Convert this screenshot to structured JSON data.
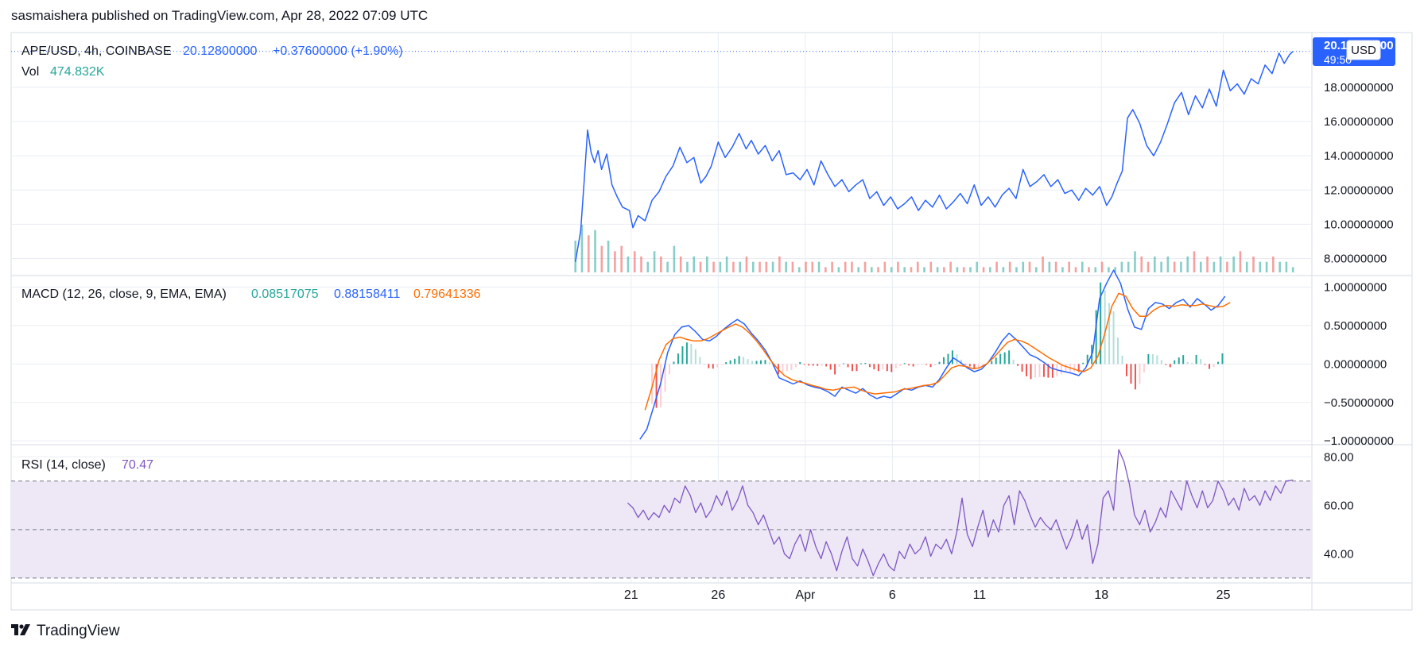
{
  "header": {
    "text": "sasmaishera published on TradingView.com, Apr 28, 2022 07:09 UTC"
  },
  "footer": {
    "logo_text": "TradingView",
    "logo_icon": "tradingview-logo-icon"
  },
  "colors": {
    "price": "#2962ff",
    "vol_up": "#26a69a",
    "vol_down": "#ef5350",
    "macd_line": "#2962ff",
    "signal_line": "#ff6d00",
    "rsi_line": "#7e57c2",
    "rsi_band": "#ede7f6",
    "grid": "#e9edf3",
    "axis_text": "#131722",
    "label_bg": "#2962ff"
  },
  "legend": {
    "symbol": "APE/USD, 4h, COINBASE",
    "price": "20.12800000",
    "change": "+0.37600000 (+1.90%)",
    "vol_label": "Vol",
    "vol_value": "474.832K",
    "macd_label": "MACD (12, 26, close, 9, EMA, EMA)",
    "macd_hist": "0.08517075",
    "macd_value": "0.88158411",
    "macd_signal": "0.79641336",
    "rsi_label": "RSI (14, close)",
    "rsi_value": "70.47"
  },
  "price_axis": {
    "currency_button": "USD",
    "last_price_label": "20.12800000",
    "countdown": "49:50"
  },
  "chart_data": [
    {
      "type": "line",
      "name": "price",
      "ylim": [
        7,
        21.2
      ],
      "yticks": [
        "8.00000000",
        "10.00000000",
        "12.00000000",
        "14.00000000",
        "16.00000000",
        "18.00000000"
      ],
      "ytick_values": [
        8,
        10,
        12,
        14,
        16,
        18
      ],
      "x_range": [
        0,
        42
      ],
      "x_ticks": [
        {
          "x": 2,
          "label": "21"
        },
        {
          "x": 7,
          "label": "26"
        },
        {
          "x": 12,
          "label": "Apr"
        },
        {
          "x": 17,
          "label": "6"
        },
        {
          "x": 22,
          "label": "11"
        },
        {
          "x": 29,
          "label": "18"
        },
        {
          "x": 36,
          "label": "25"
        }
      ],
      "x": [
        -1.2,
        -0.9,
        -0.7,
        -0.5,
        -0.3,
        -0.1,
        0.1,
        0.3,
        0.6,
        0.9,
        1.2,
        1.5,
        1.9,
        2.1,
        2.4,
        2.8,
        3.2,
        3.6,
        4.0,
        4.4,
        4.8,
        5.2,
        5.6,
        6.0,
        6.3,
        6.6,
        7.0,
        7.4,
        7.8,
        8.2,
        8.6,
        8.9,
        9.3,
        9.7,
        10.1,
        10.5,
        10.9,
        11.3,
        11.7,
        12.1,
        12.5,
        12.9,
        13.3,
        13.7,
        14.1,
        14.5,
        14.9,
        15.3,
        15.7,
        16.1,
        16.5,
        16.9,
        17.3,
        17.7,
        18.1,
        18.5,
        18.9,
        19.3,
        19.7,
        20.1,
        20.5,
        20.9,
        21.3,
        21.7,
        22.1,
        22.5,
        22.9,
        23.3,
        23.7,
        24.1,
        24.5,
        24.9,
        25.3,
        25.7,
        26.1,
        26.5,
        26.9,
        27.3,
        27.7,
        28.1,
        28.5,
        28.9,
        29.3,
        29.6,
        29.9,
        30.2,
        30.5,
        30.8,
        31.2,
        31.6,
        32.0,
        32.4,
        32.8,
        33.2,
        33.6,
        34.0,
        34.4,
        34.8,
        35.2,
        35.6,
        36.0,
        36.4,
        36.8,
        37.2,
        37.6,
        38.0,
        38.4,
        38.8,
        39.2,
        39.5,
        39.8,
        40.0
      ],
      "values": [
        7.8,
        9.6,
        12.5,
        15.5,
        14.2,
        13.6,
        14.3,
        13.2,
        14.1,
        12.3,
        11.6,
        11.0,
        10.8,
        9.8,
        10.5,
        10.2,
        11.4,
        11.9,
        12.8,
        13.4,
        14.5,
        13.6,
        13.9,
        12.4,
        12.8,
        13.4,
        14.8,
        13.9,
        14.5,
        15.3,
        14.4,
        14.9,
        14.1,
        14.6,
        13.7,
        14.3,
        12.9,
        13.0,
        12.6,
        13.2,
        12.3,
        13.7,
        12.9,
        12.2,
        12.6,
        11.9,
        12.3,
        12.6,
        11.5,
        11.9,
        11.1,
        11.6,
        10.9,
        11.2,
        11.6,
        10.8,
        11.4,
        11.0,
        11.7,
        10.9,
        11.3,
        11.8,
        11.2,
        12.3,
        11.1,
        11.6,
        11.0,
        11.7,
        12.1,
        11.5,
        13.2,
        12.2,
        12.5,
        12.9,
        12.2,
        12.6,
        11.8,
        12.0,
        11.4,
        12.1,
        11.7,
        12.2,
        11.1,
        11.6,
        12.4,
        13.1,
        16.2,
        16.7,
        15.9,
        14.6,
        14.0,
        14.8,
        15.9,
        17.1,
        17.7,
        16.4,
        17.5,
        16.8,
        17.9,
        16.9,
        19.0,
        17.8,
        18.2,
        17.6,
        18.5,
        18.2,
        19.3,
        18.8,
        20.0,
        19.4,
        19.9,
        20.1
      ]
    },
    {
      "type": "bar",
      "name": "Vol",
      "values": [
        6,
        9,
        7,
        8,
        5,
        6,
        4,
        5,
        3,
        4,
        3,
        2,
        4,
        3,
        2,
        5,
        3,
        2,
        3,
        2,
        3,
        2,
        2,
        3,
        2,
        2,
        3,
        2,
        2,
        2,
        2,
        3,
        2,
        2,
        1,
        2,
        2,
        2,
        1,
        2,
        1,
        2,
        2,
        1,
        2,
        1,
        1,
        2,
        1,
        2,
        1,
        1,
        2,
        1,
        2,
        1,
        1,
        2,
        1,
        1,
        1,
        2,
        1,
        1,
        2,
        1,
        2,
        1,
        2,
        2,
        1,
        3,
        2,
        2,
        1,
        2,
        1,
        2,
        1,
        1,
        2,
        1,
        1,
        2,
        2,
        4,
        3,
        2,
        3,
        2,
        3,
        2,
        2,
        3,
        4,
        2,
        3,
        2,
        3,
        2,
        3,
        4,
        2,
        3,
        2,
        2,
        3,
        2,
        2,
        1
      ],
      "up": [
        1,
        1,
        0,
        1,
        0,
        1,
        0,
        0,
        1,
        0,
        0,
        1,
        1,
        0,
        1,
        1,
        0,
        1,
        1,
        0,
        1,
        0,
        1,
        1,
        0,
        1,
        0,
        1,
        0,
        0,
        1,
        0,
        1,
        0,
        1,
        0,
        0,
        1,
        0,
        0,
        1,
        0,
        0,
        1,
        0,
        1,
        0,
        0,
        1,
        0,
        1,
        0,
        0,
        1,
        0,
        1,
        0,
        0,
        1,
        0,
        1,
        1,
        0,
        1,
        0,
        1,
        0,
        1,
        1,
        0,
        1,
        0,
        1,
        0,
        1,
        0,
        0,
        1,
        0,
        1,
        0,
        1,
        1,
        1,
        1,
        1,
        0,
        0,
        1,
        1,
        1,
        0,
        1,
        1,
        0,
        1,
        0,
        1,
        1,
        0,
        1,
        0,
        1,
        0,
        1,
        1,
        0,
        1,
        1,
        1
      ],
      "ylim": [
        0,
        15
      ]
    },
    {
      "type": "line",
      "name": "MACD",
      "ylim": [
        -1.05,
        1.15
      ],
      "yticks": [
        "1.00000000",
        "0.50000000",
        "0.00000000",
        "−0.50000000",
        "−1.00000000"
      ],
      "ytick_values": [
        1,
        0.5,
        0,
        -0.5,
        -1
      ],
      "x_range": [
        0,
        42
      ],
      "macd_x": [
        2.5,
        2.9,
        3.3,
        3.7,
        4.1,
        4.5,
        4.9,
        5.3,
        5.7,
        6.1,
        6.5,
        6.9,
        7.3,
        7.7,
        8.1,
        8.5,
        8.9,
        9.3,
        9.7,
        10.1,
        10.5,
        10.9,
        11.3,
        11.7,
        12.1,
        12.5,
        12.9,
        13.3,
        13.7,
        14.1,
        14.5,
        14.9,
        15.3,
        15.7,
        16.1,
        16.5,
        16.9,
        17.3,
        17.7,
        18.1,
        18.5,
        18.9,
        19.3,
        19.7,
        20.1,
        20.5,
        20.9,
        21.3,
        21.7,
        22.1,
        22.5,
        22.9,
        23.3,
        23.7,
        24.1,
        24.5,
        24.9,
        25.3,
        25.7,
        26.1,
        26.5,
        26.9,
        27.3,
        27.7,
        28.1,
        28.5,
        28.9,
        29.3,
        29.7,
        30.1,
        30.5,
        30.9,
        31.3,
        31.7,
        32.1,
        32.5,
        32.9,
        33.3,
        33.7,
        34.1,
        34.5,
        34.9,
        35.3,
        35.7,
        36.1,
        36.5,
        36.9,
        37.3,
        37.7,
        38.1,
        38.5,
        38.9,
        39.3,
        39.7,
        40.0
      ],
      "macd": [
        -0.98,
        -0.85,
        -0.55,
        -0.25,
        0.15,
        0.38,
        0.48,
        0.5,
        0.42,
        0.32,
        0.3,
        0.36,
        0.45,
        0.52,
        0.58,
        0.52,
        0.4,
        0.3,
        0.18,
        0.02,
        -0.18,
        -0.22,
        -0.26,
        -0.22,
        -0.27,
        -0.3,
        -0.32,
        -0.36,
        -0.42,
        -0.3,
        -0.34,
        -0.38,
        -0.32,
        -0.4,
        -0.45,
        -0.42,
        -0.44,
        -0.38,
        -0.32,
        -0.34,
        -0.3,
        -0.28,
        -0.3,
        -0.2,
        -0.05,
        0.08,
        0.02,
        -0.05,
        -0.1,
        -0.07,
        0.02,
        0.15,
        0.3,
        0.4,
        0.32,
        0.22,
        0.12,
        0.08,
        0.02,
        -0.05,
        -0.08,
        -0.1,
        -0.12,
        -0.15,
        -0.05,
        0.15,
        0.85,
        1.05,
        1.22,
        1.05,
        0.72,
        0.48,
        0.45,
        0.72,
        0.8,
        0.78,
        0.72,
        0.8,
        0.84,
        0.74,
        0.85,
        0.78,
        0.7,
        0.76,
        0.88
      ],
      "signal_x": [
        2.8,
        3.2,
        3.6,
        4.0,
        4.4,
        4.8,
        5.2,
        5.6,
        6.0,
        6.4,
        6.8,
        7.2,
        7.6,
        8.0,
        8.4,
        8.8,
        9.2,
        9.6,
        10.0,
        10.4,
        10.8,
        11.2,
        11.6,
        12.0,
        12.4,
        12.8,
        13.2,
        13.6,
        14.0,
        14.4,
        14.8,
        15.2,
        15.6,
        16.0,
        16.4,
        16.8,
        17.2,
        17.6,
        18.0,
        18.4,
        18.8,
        19.2,
        19.6,
        20.0,
        20.4,
        20.8,
        21.2,
        21.6,
        22.0,
        22.4,
        22.8,
        23.2,
        23.6,
        24.0,
        24.4,
        24.8,
        25.2,
        25.6,
        26.0,
        26.4,
        26.8,
        27.2,
        27.6,
        28.0,
        28.4,
        28.8,
        29.2,
        29.6,
        30.0,
        30.4,
        30.8,
        31.2,
        31.6,
        32.0,
        32.4,
        32.8,
        33.2,
        33.6,
        34.0,
        34.4,
        34.8,
        35.2,
        35.6,
        36.0,
        36.4,
        36.8,
        37.2,
        37.6,
        38.0,
        38.4,
        38.8,
        39.2,
        39.6,
        40.0
      ],
      "signal": [
        -0.6,
        -0.3,
        0.05,
        0.25,
        0.33,
        0.35,
        0.32,
        0.3,
        0.3,
        0.33,
        0.38,
        0.43,
        0.48,
        0.52,
        0.48,
        0.4,
        0.3,
        0.18,
        0.05,
        -0.06,
        -0.15,
        -0.2,
        -0.23,
        -0.25,
        -0.28,
        -0.3,
        -0.33,
        -0.34,
        -0.32,
        -0.31,
        -0.3,
        -0.34,
        -0.37,
        -0.39,
        -0.38,
        -0.37,
        -0.36,
        -0.33,
        -0.32,
        -0.3,
        -0.28,
        -0.27,
        -0.24,
        -0.15,
        -0.05,
        -0.02,
        -0.03,
        -0.06,
        -0.05,
        0.0,
        0.08,
        0.18,
        0.28,
        0.32,
        0.3,
        0.26,
        0.2,
        0.14,
        0.08,
        0.03,
        -0.02,
        -0.05,
        -0.08,
        -0.1,
        -0.05,
        0.1,
        0.4,
        0.75,
        0.92,
        0.88,
        0.72,
        0.62,
        0.62,
        0.7,
        0.75,
        0.76,
        0.75,
        0.77,
        0.76,
        0.76,
        0.78,
        0.76,
        0.74,
        0.75,
        0.8
      ]
    },
    {
      "type": "line",
      "name": "RSI",
      "ylim": [
        28,
        85
      ],
      "yticks": [
        "80.00",
        "60.00",
        "40.00"
      ],
      "ytick_values": [
        80,
        60,
        40
      ],
      "band": [
        30,
        70
      ],
      "midline": 50,
      "x_range": [
        0,
        42
      ],
      "x": [
        1.8,
        2.1,
        2.4,
        2.7,
        3.0,
        3.3,
        3.6,
        3.9,
        4.2,
        4.5,
        4.8,
        5.1,
        5.4,
        5.7,
        6.0,
        6.3,
        6.6,
        6.9,
        7.2,
        7.5,
        7.8,
        8.1,
        8.4,
        8.7,
        9.0,
        9.3,
        9.6,
        9.9,
        10.2,
        10.5,
        10.8,
        11.1,
        11.4,
        11.7,
        12.0,
        12.3,
        12.6,
        12.9,
        13.2,
        13.5,
        13.8,
        14.1,
        14.4,
        14.7,
        15.0,
        15.3,
        15.6,
        15.9,
        16.2,
        16.5,
        16.8,
        17.1,
        17.4,
        17.7,
        18.0,
        18.3,
        18.6,
        18.9,
        19.2,
        19.5,
        19.8,
        20.1,
        20.4,
        20.7,
        21.0,
        21.3,
        21.6,
        21.9,
        22.2,
        22.5,
        22.8,
        23.1,
        23.4,
        23.7,
        24.0,
        24.3,
        24.6,
        24.9,
        25.2,
        25.5,
        25.8,
        26.1,
        26.4,
        26.7,
        27.0,
        27.3,
        27.6,
        27.9,
        28.2,
        28.5,
        28.8,
        29.1,
        29.4,
        29.7,
        30.0,
        30.3,
        30.6,
        30.9,
        31.2,
        31.5,
        31.8,
        32.1,
        32.4,
        32.7,
        33.0,
        33.3,
        33.6,
        33.9,
        34.2,
        34.5,
        34.8,
        35.1,
        35.4,
        35.7,
        36.0,
        36.3,
        36.6,
        36.9,
        37.2,
        37.5,
        37.8,
        38.1,
        38.4,
        38.7,
        39.0,
        39.3,
        39.6,
        40.0
      ],
      "values": [
        61,
        59,
        55,
        58,
        54,
        57,
        55,
        60,
        57,
        63,
        61,
        68,
        64,
        57,
        61,
        55,
        58,
        64,
        60,
        66,
        58,
        62,
        68,
        60,
        57,
        52,
        56,
        50,
        44,
        47,
        40,
        38,
        44,
        48,
        41,
        50,
        43,
        38,
        45,
        40,
        33,
        41,
        47,
        38,
        35,
        42,
        37,
        31,
        36,
        40,
        35,
        33,
        41,
        38,
        44,
        40,
        42,
        47,
        39,
        44,
        42,
        46,
        40,
        49,
        63,
        48,
        43,
        51,
        58,
        47,
        54,
        49,
        60,
        64,
        52,
        66,
        62,
        56,
        51,
        55,
        52,
        50,
        54,
        48,
        42,
        47,
        54,
        46,
        52,
        36,
        44,
        63,
        66,
        58,
        83,
        78,
        69,
        56,
        52,
        58,
        49,
        53,
        59,
        55,
        66,
        62,
        58,
        70,
        64,
        59,
        66,
        59,
        62,
        70,
        66,
        60,
        63,
        58,
        67,
        62,
        64,
        60,
        66,
        62,
        68,
        65,
        70,
        70.47
      ]
    }
  ]
}
